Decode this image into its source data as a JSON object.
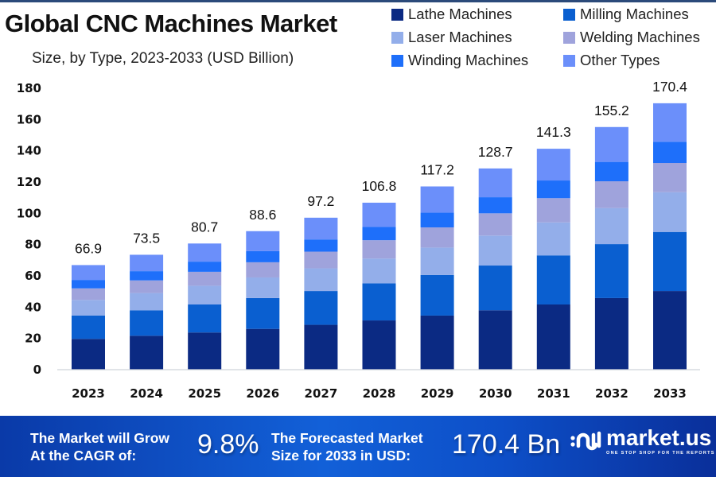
{
  "header": {
    "title": "Global CNC Machines Market",
    "subtitle": "Size, by Type, 2023-2033 (USD Billion)"
  },
  "legend": [
    {
      "label": "Lathe Machines",
      "color": "#0b2a83"
    },
    {
      "label": "Milling Machines",
      "color": "#0a5fd0"
    },
    {
      "label": "Laser Machines",
      "color": "#93aeea"
    },
    {
      "label": "Welding Machines",
      "color": "#9fa3dc"
    },
    {
      "label": "Winding Machines",
      "color": "#1e6ffa"
    },
    {
      "label": "Other Types",
      "color": "#6b8ffa"
    }
  ],
  "chart_data": {
    "type": "bar",
    "stacked": true,
    "title": "Global CNC Machines Market",
    "subtitle": "Size, by Type, 2023-2033 (USD Billion)",
    "xlabel": "",
    "ylabel": "",
    "ylim": [
      0,
      180
    ],
    "yticks": [
      0,
      20,
      40,
      60,
      80,
      100,
      120,
      140,
      160,
      180
    ],
    "grid": false,
    "legend_position": "top-right",
    "categories": [
      "2023",
      "2024",
      "2025",
      "2026",
      "2027",
      "2028",
      "2029",
      "2030",
      "2031",
      "2032",
      "2033"
    ],
    "totals": [
      66.9,
      73.5,
      80.7,
      88.6,
      97.2,
      106.8,
      117.2,
      128.7,
      141.3,
      155.2,
      170.4
    ],
    "series": [
      {
        "name": "Lathe Machines",
        "color": "#0b2a83",
        "values": [
          19.7,
          21.7,
          23.8,
          26.1,
          28.7,
          31.5,
          34.6,
          38.0,
          41.7,
          45.8,
          50.3
        ]
      },
      {
        "name": "Milling Machines",
        "color": "#0a5fd0",
        "values": [
          14.9,
          16.3,
          17.9,
          19.7,
          21.6,
          23.7,
          26.0,
          28.6,
          31.4,
          34.5,
          37.8
        ]
      },
      {
        "name": "Laser Machines",
        "color": "#93aeea",
        "values": [
          10.0,
          11.0,
          12.0,
          13.2,
          14.5,
          15.9,
          17.5,
          19.2,
          21.1,
          23.1,
          25.4
        ]
      },
      {
        "name": "Welding Machines",
        "color": "#9fa3dc",
        "values": [
          7.4,
          8.1,
          8.9,
          9.7,
          10.7,
          11.7,
          12.9,
          14.2,
          15.5,
          17.1,
          18.7
        ]
      },
      {
        "name": "Winding Machines",
        "color": "#1e6ffa",
        "values": [
          5.4,
          5.9,
          6.5,
          7.1,
          7.8,
          8.5,
          9.4,
          10.3,
          11.3,
          12.4,
          13.6
        ]
      },
      {
        "name": "Other Types",
        "color": "#6b8ffa",
        "values": [
          9.5,
          10.5,
          11.6,
          12.8,
          13.9,
          15.5,
          16.8,
          18.4,
          20.3,
          22.3,
          24.6
        ]
      }
    ]
  },
  "footer": {
    "cagr_label_line1": "The Market will Grow",
    "cagr_label_line2": "At the CAGR of:",
    "cagr_value": "9.8%",
    "forecast_label_line1": "The Forecasted Market",
    "forecast_label_line2": "Size for 2033 in USD:",
    "forecast_value": "170.4 Bn",
    "brand_name": "market.us",
    "brand_tagline": "ONE STOP SHOP FOR THE REPORTS"
  }
}
